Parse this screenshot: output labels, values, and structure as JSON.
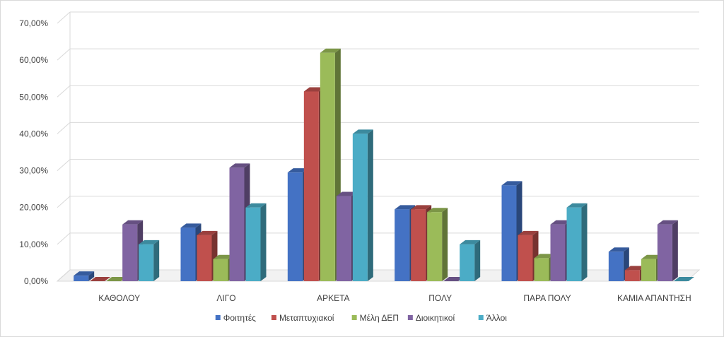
{
  "chart_data": {
    "type": "bar",
    "style": "3d-clustered-column",
    "title": "",
    "xlabel": "",
    "ylabel": "",
    "ylim": [
      0,
      70
    ],
    "y_ticks": [
      0,
      10,
      20,
      30,
      40,
      50,
      60,
      70
    ],
    "y_tick_labels": [
      "0,00%",
      "10,00%",
      "20,00%",
      "30,00%",
      "40,00%",
      "50,00%",
      "60,00%",
      "70,00%"
    ],
    "grid": true,
    "legend_position": "bottom",
    "categories": [
      "ΚΑΘΟΛΟΥ",
      "ΛΙΓΟ",
      "ΑΡΚΕΤΑ",
      "ΠΟΛΥ",
      "ΠΑΡΑ ΠΟΛΥ",
      "ΚΑΜΙΑ ΑΠΑΝΤΗΣΗ"
    ],
    "series": [
      {
        "name": "Φοιτητές",
        "color": "#4472c4",
        "values": [
          1.5,
          14.5,
          29.5,
          19.5,
          26,
          8
        ]
      },
      {
        "name": "Μεταπτυχιακοί",
        "color": "#c0504d",
        "values": [
          0,
          12.5,
          51.5,
          19.5,
          12.5,
          3
        ]
      },
      {
        "name": "Μέλη ΔΕΠ",
        "color": "#9bbb59",
        "values": [
          0,
          6,
          62,
          18.75,
          6.25,
          6
        ]
      },
      {
        "name": "Διοικητικοί",
        "color": "#8064a2",
        "values": [
          15.4,
          30.8,
          23.1,
          0,
          15.4,
          15.4
        ]
      },
      {
        "name": "Άλλοι",
        "color": "#4bacc6",
        "values": [
          10,
          20,
          40,
          10,
          20,
          0
        ]
      }
    ]
  }
}
